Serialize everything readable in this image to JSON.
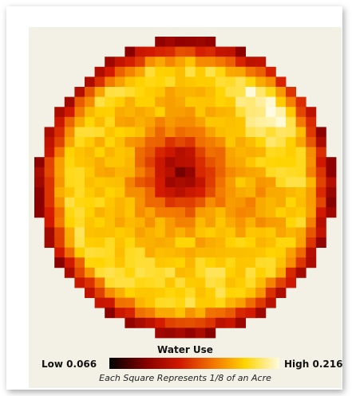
{
  "chart_data": {
    "type": "heatmap",
    "title": "Water Use",
    "legend": {
      "low_label": "Low 0.066",
      "high_label": "High 0.216",
      "min": 0.066,
      "max": 0.216,
      "colormap": [
        "#000000",
        "#8a0000",
        "#d31a00",
        "#f37a00",
        "#ffd400",
        "#fffbe0"
      ]
    },
    "note": "Each Square Represents 1/8 of an Acre",
    "grid_size": 30,
    "field_shape": "circle",
    "low_zone_center_cell": [
      14,
      13
    ],
    "bright_zone_center_cell": [
      23,
      6
    ],
    "value_range_observed": [
      0.066,
      0.216
    ]
  }
}
